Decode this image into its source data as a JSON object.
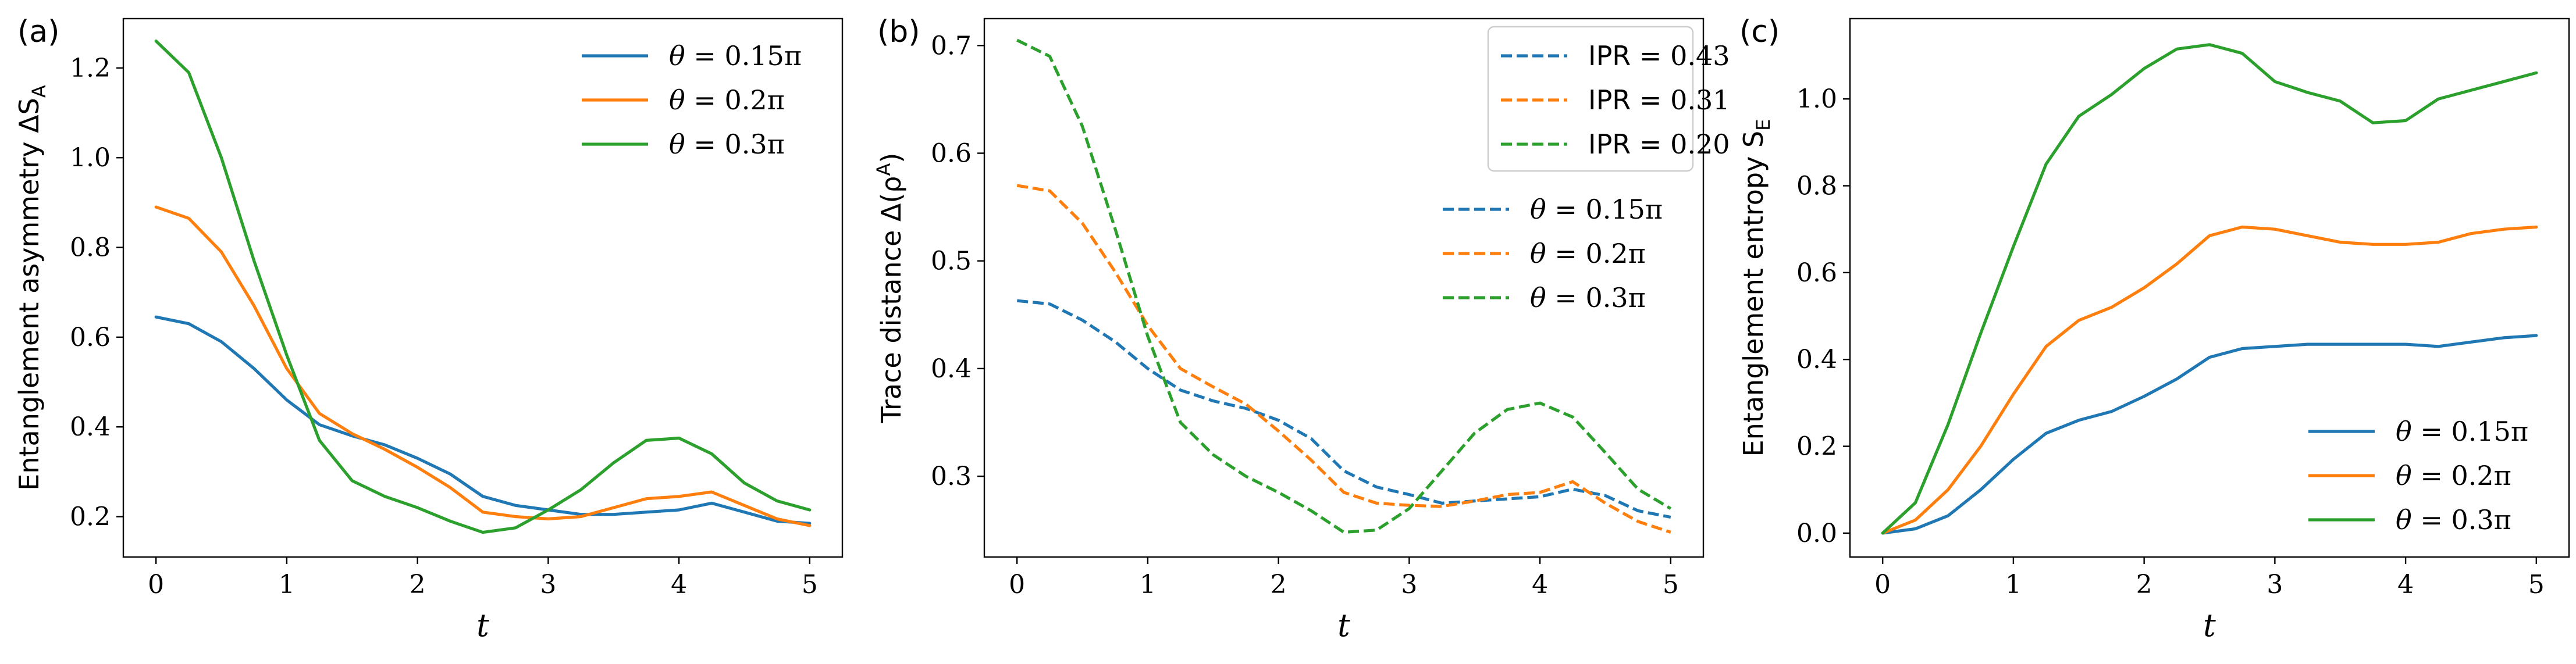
{
  "figure": {
    "panels": [
      {
        "label": "(a)",
        "xlabel": "t",
        "ylabel": "Entanglement asymmetry ΔS",
        "ylabel_sub": "A",
        "xlim": [
          -0.25,
          5.25
        ],
        "ylim": [
          0.11,
          1.31
        ],
        "xticks": [
          0,
          1,
          2,
          3,
          4,
          5
        ],
        "yticks": [
          0.2,
          0.4,
          0.6,
          0.8,
          1.0,
          1.2
        ],
        "ytick_decimals": 1,
        "legend_groups": [
          {
            "placement": "top-right",
            "frame": false,
            "entries": [
              {
                "label_prefix": "θ = ",
                "label_value": "0.15π",
                "color": "#1f77b4",
                "dashed": false
              },
              {
                "label_prefix": "θ = ",
                "label_value": "0.2π",
                "color": "#ff7f0e",
                "dashed": false
              },
              {
                "label_prefix": "θ = ",
                "label_value": "0.3π",
                "color": "#2ca02c",
                "dashed": false
              }
            ]
          }
        ]
      },
      {
        "label": "(b)",
        "xlabel": "t",
        "ylabel": "Trace distance Δ(ρ",
        "ylabel_sup": "A",
        "ylabel_suffix": ")",
        "xlim": [
          -0.25,
          5.25
        ],
        "ylim": [
          0.225,
          0.725
        ],
        "xticks": [
          0,
          1,
          2,
          3,
          4,
          5
        ],
        "yticks": [
          0.3,
          0.4,
          0.5,
          0.6,
          0.7
        ],
        "ytick_decimals": 1,
        "legend_groups": [
          {
            "placement": "top-right",
            "frame": true,
            "entries": [
              {
                "label_prefix": "IPR = ",
                "label_value": "0.43",
                "color": "#1f77b4",
                "dashed": true
              },
              {
                "label_prefix": "IPR = ",
                "label_value": "0.31",
                "color": "#ff7f0e",
                "dashed": true
              },
              {
                "label_prefix": "IPR = ",
                "label_value": "0.20",
                "color": "#2ca02c",
                "dashed": true
              }
            ]
          },
          {
            "placement": "right",
            "frame": false,
            "entries": [
              {
                "label_prefix": "θ = ",
                "label_value": "0.15π",
                "color": "#1f77b4",
                "dashed": true
              },
              {
                "label_prefix": "θ = ",
                "label_value": "0.2π",
                "color": "#ff7f0e",
                "dashed": true
              },
              {
                "label_prefix": "θ = ",
                "label_value": "0.3π",
                "color": "#2ca02c",
                "dashed": true
              }
            ]
          }
        ]
      },
      {
        "label": "(c)",
        "xlabel": "t",
        "ylabel": "Entanglement entropy S",
        "ylabel_sub": "E",
        "xlim": [
          -0.25,
          5.25
        ],
        "ylim": [
          -0.055,
          1.185
        ],
        "xticks": [
          0,
          1,
          2,
          3,
          4,
          5
        ],
        "yticks": [
          0.0,
          0.2,
          0.4,
          0.6,
          0.8,
          1.0
        ],
        "ytick_decimals": 1,
        "legend_groups": [
          {
            "placement": "bottom-right",
            "frame": false,
            "entries": [
              {
                "label_prefix": "θ = ",
                "label_value": "0.15π",
                "color": "#1f77b4",
                "dashed": false
              },
              {
                "label_prefix": "θ = ",
                "label_value": "0.2π",
                "color": "#ff7f0e",
                "dashed": false
              },
              {
                "label_prefix": "θ = ",
                "label_value": "0.3π",
                "color": "#2ca02c",
                "dashed": false
              }
            ]
          }
        ]
      }
    ]
  },
  "chart_data": [
    {
      "type": "line",
      "x": [
        0,
        0.25,
        0.5,
        0.75,
        1,
        1.25,
        1.5,
        1.75,
        2,
        2.25,
        2.5,
        2.75,
        3,
        3.25,
        3.5,
        3.75,
        4,
        4.25,
        4.5,
        4.75,
        5
      ],
      "series": [
        {
          "values": [
            0.645,
            0.63,
            0.59,
            0.53,
            0.46,
            0.405,
            0.38,
            0.36,
            0.33,
            0.295,
            0.245,
            0.225,
            0.215,
            0.205,
            0.205,
            0.21,
            0.215,
            0.23,
            0.21,
            0.19,
            0.185
          ],
          "color": "#1f77b4"
        },
        {
          "values": [
            0.89,
            0.865,
            0.79,
            0.67,
            0.53,
            0.43,
            0.385,
            0.35,
            0.31,
            0.265,
            0.21,
            0.2,
            0.195,
            0.2,
            0.22,
            0.24,
            0.245,
            0.255,
            0.225,
            0.195,
            0.18
          ],
          "color": "#ff7f0e"
        },
        {
          "values": [
            1.26,
            1.19,
            1.0,
            0.77,
            0.56,
            0.37,
            0.28,
            0.245,
            0.22,
            0.19,
            0.165,
            0.175,
            0.215,
            0.26,
            0.32,
            0.37,
            0.375,
            0.34,
            0.275,
            0.235,
            0.215
          ],
          "color": "#2ca02c"
        }
      ]
    },
    {
      "type": "line",
      "x": [
        0,
        0.25,
        0.5,
        0.75,
        1,
        1.25,
        1.5,
        1.75,
        2,
        2.25,
        2.5,
        2.75,
        3,
        3.25,
        3.5,
        3.75,
        4,
        4.25,
        4.5,
        4.75,
        5
      ],
      "series": [
        {
          "values": [
            0.463,
            0.46,
            0.445,
            0.425,
            0.4,
            0.38,
            0.37,
            0.363,
            0.352,
            0.335,
            0.305,
            0.29,
            0.283,
            0.275,
            0.277,
            0.279,
            0.281,
            0.288,
            0.282,
            0.268,
            0.262
          ],
          "color": "#1f77b4"
        },
        {
          "values": [
            0.57,
            0.565,
            0.535,
            0.49,
            0.44,
            0.4,
            0.383,
            0.367,
            0.342,
            0.315,
            0.285,
            0.275,
            0.273,
            0.272,
            0.277,
            0.283,
            0.285,
            0.295,
            0.275,
            0.258,
            0.248
          ],
          "color": "#ff7f0e"
        },
        {
          "values": [
            0.705,
            0.69,
            0.625,
            0.53,
            0.43,
            0.35,
            0.32,
            0.3,
            0.285,
            0.268,
            0.248,
            0.25,
            0.27,
            0.305,
            0.34,
            0.362,
            0.368,
            0.355,
            0.322,
            0.288,
            0.27
          ],
          "color": "#2ca02c"
        }
      ]
    },
    {
      "type": "line",
      "x": [
        0,
        0.25,
        0.5,
        0.75,
        1,
        1.25,
        1.5,
        1.75,
        2,
        2.25,
        2.5,
        2.75,
        3,
        3.25,
        3.5,
        3.75,
        4,
        4.25,
        4.5,
        4.75,
        5
      ],
      "series": [
        {
          "values": [
            0.0,
            0.01,
            0.04,
            0.1,
            0.17,
            0.23,
            0.26,
            0.28,
            0.315,
            0.355,
            0.405,
            0.425,
            0.43,
            0.435,
            0.435,
            0.435,
            0.435,
            0.43,
            0.44,
            0.45,
            0.455
          ],
          "color": "#1f77b4"
        },
        {
          "values": [
            0.0,
            0.03,
            0.1,
            0.2,
            0.32,
            0.43,
            0.49,
            0.52,
            0.565,
            0.62,
            0.685,
            0.705,
            0.7,
            0.685,
            0.67,
            0.665,
            0.665,
            0.67,
            0.69,
            0.7,
            0.705
          ],
          "color": "#ff7f0e"
        },
        {
          "values": [
            0.0,
            0.07,
            0.25,
            0.46,
            0.66,
            0.85,
            0.96,
            1.01,
            1.07,
            1.115,
            1.125,
            1.105,
            1.04,
            1.015,
            0.995,
            0.945,
            0.95,
            1.0,
            1.02,
            1.04,
            1.06
          ],
          "color": "#2ca02c"
        }
      ]
    }
  ]
}
